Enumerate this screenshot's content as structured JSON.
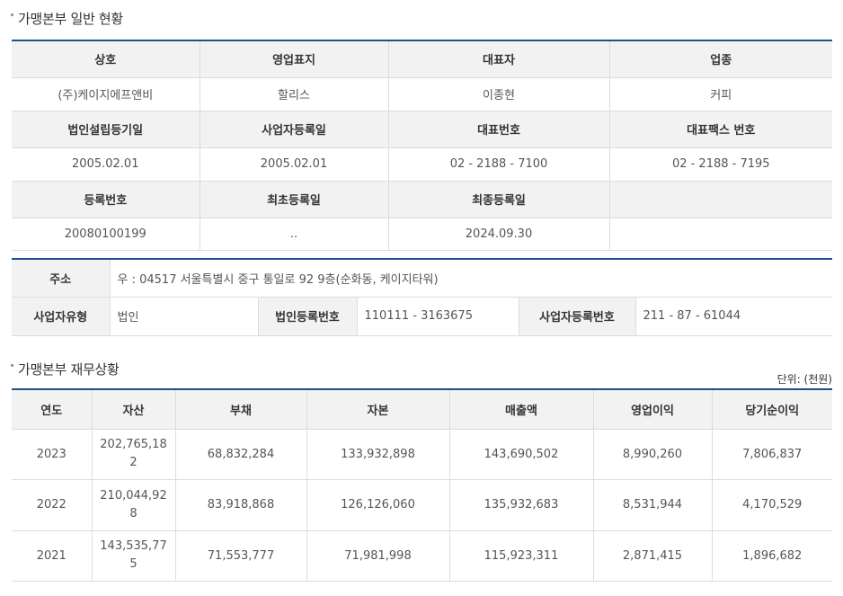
{
  "section1": {
    "title": "가맹본부 일반 현황",
    "headers1": [
      "상호",
      "영업표지",
      "대표자",
      "업종"
    ],
    "values1": [
      "(주)케이지에프앤비",
      "할리스",
      "이종현",
      "커피"
    ],
    "headers2": [
      "법인설립등기일",
      "사업자등록일",
      "대표번호",
      "대표팩스 번호"
    ],
    "values2": [
      "2005.02.01",
      "2005.02.01",
      "02 - 2188 - 7100",
      "02 - 2188 - 7195"
    ],
    "headers3": [
      "등록번호",
      "최초등록일",
      "최종등록일",
      ""
    ],
    "values3": [
      "20080100199",
      "..",
      "2024.09.30",
      ""
    ]
  },
  "section2": {
    "address_label": "주소",
    "address_value": "우 : 04517 서울특별시 중구 통일로 92 9층(순화동, 케이지타워)",
    "biz_type_label": "사업자유형",
    "biz_type_value": "법인",
    "corp_reg_label": "법인등록번호",
    "corp_reg_value": "110111 - 3163675",
    "biz_reg_label": "사업자등록번호",
    "biz_reg_value": "211 - 87 - 61044"
  },
  "section3": {
    "title": "가맹본부 재무상황",
    "unit": "단위: (천원)",
    "headers": [
      "연도",
      "자산",
      "부채",
      "자본",
      "매출액",
      "영업이익",
      "당기순이익"
    ],
    "rows": [
      [
        "2023",
        "202,765,182",
        "68,832,284",
        "133,932,898",
        "143,690,502",
        "8,990,260",
        "7,806,837"
      ],
      [
        "2022",
        "210,044,928",
        "83,918,868",
        "126,126,060",
        "135,932,683",
        "8,531,944",
        "4,170,529"
      ],
      [
        "2021",
        "143,535,775",
        "71,553,777",
        "71,981,998",
        "115,923,311",
        "2,871,415",
        "1,896,682"
      ]
    ]
  }
}
